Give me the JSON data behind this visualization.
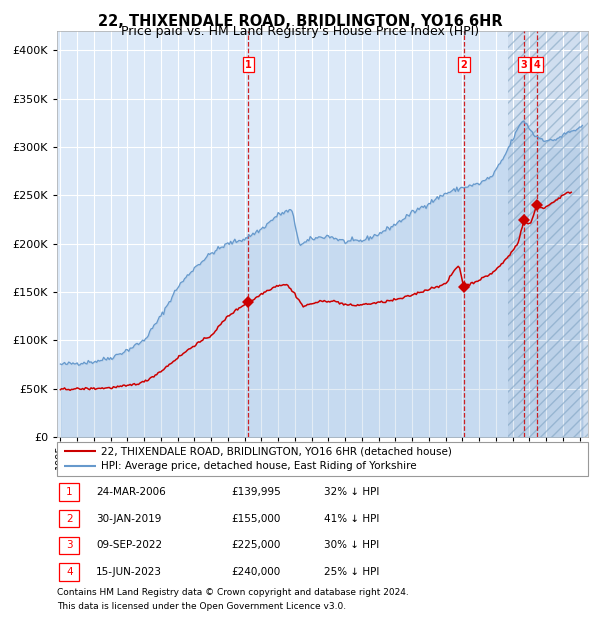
{
  "title": "22, THIXENDALE ROAD, BRIDLINGTON, YO16 6HR",
  "subtitle": "Price paid vs. HM Land Registry's House Price Index (HPI)",
  "red_label": "22, THIXENDALE ROAD, BRIDLINGTON, YO16 6HR (detached house)",
  "blue_label": "HPI: Average price, detached house, East Riding of Yorkshire",
  "footer1": "Contains HM Land Registry data © Crown copyright and database right 2024.",
  "footer2": "This data is licensed under the Open Government Licence v3.0.",
  "transactions": [
    {
      "num": 1,
      "date": "24-MAR-2006",
      "price": 139995,
      "pct": "32% ↓ HPI"
    },
    {
      "num": 2,
      "date": "30-JAN-2019",
      "price": 155000,
      "pct": "41% ↓ HPI"
    },
    {
      "num": 3,
      "date": "09-SEP-2022",
      "price": 225000,
      "pct": "30% ↓ HPI"
    },
    {
      "num": 4,
      "date": "15-JUN-2023",
      "price": 240000,
      "pct": "25% ↓ HPI"
    }
  ],
  "transaction_dates_decimal": [
    2006.23,
    2019.08,
    2022.69,
    2023.46
  ],
  "transaction_prices": [
    139995,
    155000,
    225000,
    240000
  ],
  "ylim": [
    0,
    420000
  ],
  "yticks": [
    0,
    50000,
    100000,
    150000,
    200000,
    250000,
    300000,
    350000,
    400000
  ],
  "xlim_start": 1994.8,
  "xlim_end": 2026.5,
  "background_color": "#ffffff",
  "plot_bg_color": "#dce9f8",
  "grid_color": "#ffffff",
  "red_line_color": "#cc0000",
  "blue_line_color": "#6699cc",
  "dot_color": "#cc0000",
  "vline_color": "#cc0000",
  "title_fontsize": 10.5,
  "subtitle_fontsize": 9,
  "legend_fontsize": 7.5,
  "table_fontsize": 7.5,
  "footer_fontsize": 6.5,
  "hpi_keypoints": [
    [
      1995.0,
      75000
    ],
    [
      1996.0,
      76500
    ],
    [
      1997.0,
      78000
    ],
    [
      1998.0,
      82000
    ],
    [
      1999.0,
      90000
    ],
    [
      2000.0,
      100000
    ],
    [
      2001.0,
      125000
    ],
    [
      2002.0,
      155000
    ],
    [
      2003.0,
      175000
    ],
    [
      2004.0,
      190000
    ],
    [
      2005.0,
      200000
    ],
    [
      2006.0,
      205000
    ],
    [
      2007.0,
      215000
    ],
    [
      2008.0,
      230000
    ],
    [
      2008.8,
      235000
    ],
    [
      2009.3,
      198000
    ],
    [
      2010.0,
      205000
    ],
    [
      2011.0,
      208000
    ],
    [
      2012.0,
      202000
    ],
    [
      2013.0,
      203000
    ],
    [
      2014.0,
      210000
    ],
    [
      2015.0,
      220000
    ],
    [
      2016.0,
      232000
    ],
    [
      2017.0,
      242000
    ],
    [
      2018.0,
      252000
    ],
    [
      2019.0,
      258000
    ],
    [
      2020.0,
      262000
    ],
    [
      2020.8,
      270000
    ],
    [
      2021.5,
      290000
    ],
    [
      2022.0,
      308000
    ],
    [
      2022.6,
      328000
    ],
    [
      2022.9,
      322000
    ],
    [
      2023.3,
      312000
    ],
    [
      2023.8,
      308000
    ],
    [
      2024.3,
      306000
    ],
    [
      2024.8,
      310000
    ],
    [
      2025.3,
      315000
    ],
    [
      2025.8,
      318000
    ],
    [
      2026.2,
      320000
    ]
  ],
  "red_keypoints": [
    [
      1995.0,
      49500
    ],
    [
      1996.0,
      49800
    ],
    [
      1997.0,
      50200
    ],
    [
      1998.0,
      51000
    ],
    [
      1999.0,
      53000
    ],
    [
      2000.0,
      57000
    ],
    [
      2001.0,
      68000
    ],
    [
      2002.0,
      82000
    ],
    [
      2003.0,
      95000
    ],
    [
      2004.0,
      105000
    ],
    [
      2005.0,
      125000
    ],
    [
      2005.8,
      135000
    ],
    [
      2006.23,
      139995
    ],
    [
      2006.6,
      143000
    ],
    [
      2007.0,
      148000
    ],
    [
      2007.5,
      153000
    ],
    [
      2008.0,
      157000
    ],
    [
      2008.5,
      158000
    ],
    [
      2009.0,
      148000
    ],
    [
      2009.5,
      135000
    ],
    [
      2010.0,
      138000
    ],
    [
      2010.5,
      140000
    ],
    [
      2011.0,
      141000
    ],
    [
      2011.5,
      140000
    ],
    [
      2012.0,
      137000
    ],
    [
      2012.5,
      136000
    ],
    [
      2013.0,
      137000
    ],
    [
      2013.5,
      138000
    ],
    [
      2014.0,
      139000
    ],
    [
      2014.5,
      140500
    ],
    [
      2015.0,
      142000
    ],
    [
      2015.5,
      144000
    ],
    [
      2016.0,
      147000
    ],
    [
      2016.5,
      150000
    ],
    [
      2017.0,
      153000
    ],
    [
      2017.5,
      156000
    ],
    [
      2018.0,
      158000
    ],
    [
      2018.5,
      172000
    ],
    [
      2018.8,
      178000
    ],
    [
      2019.08,
      155000
    ],
    [
      2019.3,
      157000
    ],
    [
      2019.8,
      161000
    ],
    [
      2020.3,
      165000
    ],
    [
      2020.8,
      170000
    ],
    [
      2021.3,
      178000
    ],
    [
      2021.8,
      188000
    ],
    [
      2022.3,
      200000
    ],
    [
      2022.69,
      225000
    ],
    [
      2022.85,
      220000
    ],
    [
      2023.1,
      222000
    ],
    [
      2023.46,
      240000
    ],
    [
      2023.7,
      237000
    ],
    [
      2024.0,
      238000
    ],
    [
      2024.5,
      244000
    ],
    [
      2025.0,
      250000
    ],
    [
      2025.5,
      254000
    ]
  ]
}
